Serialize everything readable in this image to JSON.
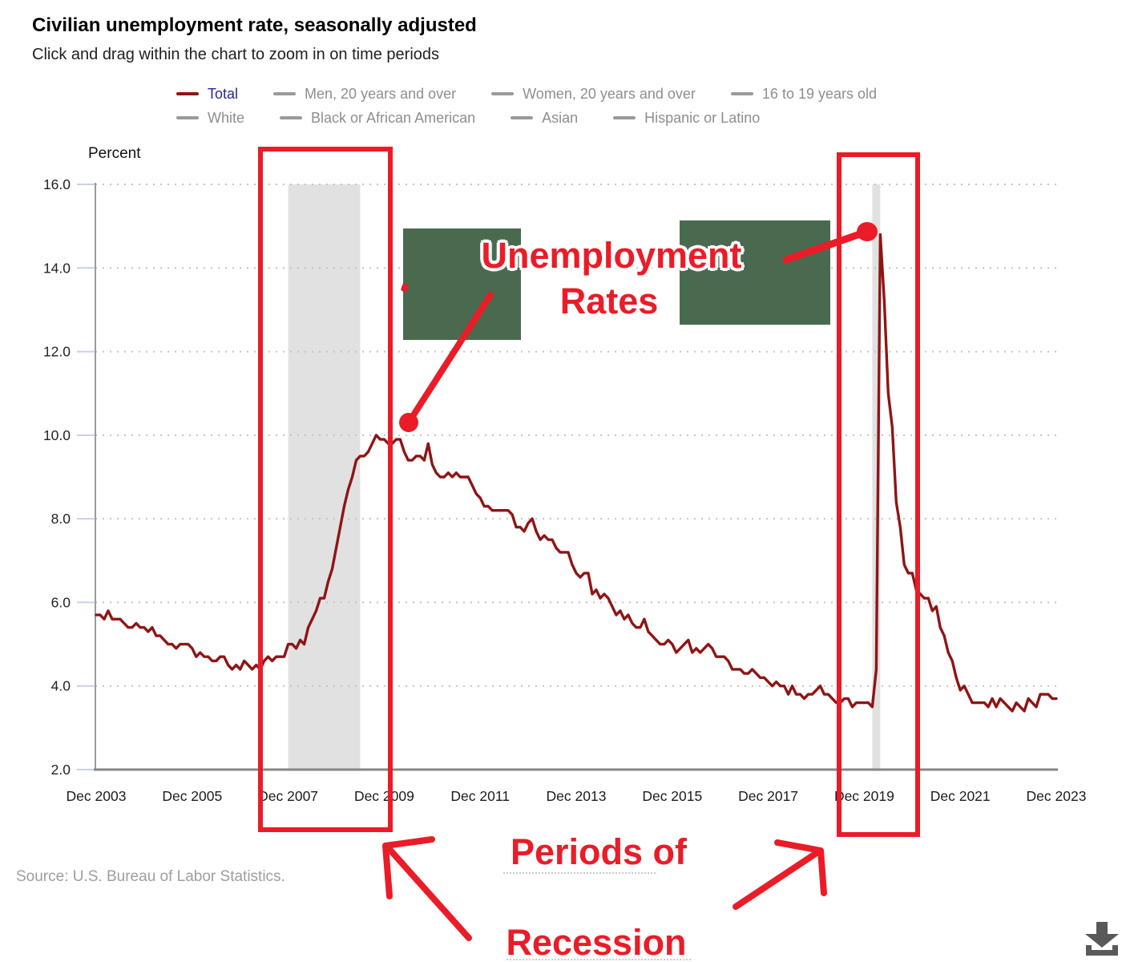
{
  "header": {
    "title": "Civilian unemployment rate, seasonally adjusted",
    "subtitle": "Click and drag within the chart to zoom in on time periods"
  },
  "legend": {
    "rows": [
      [
        {
          "label": "Total",
          "swatch": "#8e1515",
          "label_color": "#26269c",
          "active": true
        },
        {
          "label": "Men, 20 years and over"
        },
        {
          "label": "Women, 20 years and over"
        },
        {
          "label": "16 to 19 years old"
        }
      ],
      [
        {
          "label": "White"
        },
        {
          "label": "Black or African American"
        },
        {
          "label": "Asian"
        },
        {
          "label": "Hispanic or Latino"
        }
      ]
    ],
    "inactive_swatch": "#9a9a9a",
    "inactive_label_color": "#8e8e8e"
  },
  "chart_data": {
    "type": "line",
    "title": "Civilian unemployment rate, seasonally adjusted",
    "ylabel": "Percent",
    "ylim": [
      2,
      16
    ],
    "yticks": [
      2,
      4,
      6,
      8,
      10,
      12,
      14,
      16
    ],
    "ytick_labels": [
      "2.0",
      "4.0",
      "6.0",
      "8.0",
      "10.0",
      "12.0",
      "14.0",
      "16.0"
    ],
    "xtick_labels": [
      "Dec 2003",
      "Dec 2005",
      "Dec 2007",
      "Dec 2009",
      "Dec 2011",
      "Dec 2013",
      "Dec 2015",
      "Dec 2017",
      "Dec 2019",
      "Dec 2021",
      "Dec 2023"
    ],
    "xtick_every_months": 24,
    "grid": "dotted-horizontal",
    "legend_position": "top",
    "series": [
      {
        "name": "Total",
        "color": "#8e1515",
        "start": "2003-12",
        "frequency": "monthly",
        "values": [
          5.7,
          5.7,
          5.6,
          5.8,
          5.6,
          5.6,
          5.6,
          5.5,
          5.4,
          5.4,
          5.5,
          5.4,
          5.4,
          5.3,
          5.4,
          5.2,
          5.2,
          5.1,
          5.0,
          5.0,
          4.9,
          5.0,
          5.0,
          5.0,
          4.9,
          4.7,
          4.8,
          4.7,
          4.7,
          4.6,
          4.6,
          4.7,
          4.7,
          4.5,
          4.4,
          4.5,
          4.4,
          4.6,
          4.5,
          4.4,
          4.5,
          4.4,
          4.6,
          4.7,
          4.6,
          4.7,
          4.7,
          4.7,
          5.0,
          5.0,
          4.9,
          5.1,
          5.0,
          5.4,
          5.6,
          5.8,
          6.1,
          6.1,
          6.5,
          6.8,
          7.3,
          7.8,
          8.3,
          8.7,
          9.0,
          9.4,
          9.5,
          9.5,
          9.6,
          9.8,
          10.0,
          9.9,
          9.9,
          9.8,
          9.8,
          9.9,
          9.9,
          9.6,
          9.4,
          9.4,
          9.5,
          9.5,
          9.4,
          9.8,
          9.3,
          9.1,
          9.0,
          9.0,
          9.1,
          9.0,
          9.1,
          9.0,
          9.0,
          9.0,
          8.8,
          8.6,
          8.5,
          8.3,
          8.3,
          8.2,
          8.2,
          8.2,
          8.2,
          8.2,
          8.1,
          7.8,
          7.8,
          7.7,
          7.9,
          8.0,
          7.7,
          7.5,
          7.6,
          7.5,
          7.5,
          7.3,
          7.2,
          7.2,
          7.2,
          6.9,
          6.7,
          6.6,
          6.7,
          6.7,
          6.2,
          6.3,
          6.1,
          6.2,
          6.1,
          5.9,
          5.7,
          5.8,
          5.6,
          5.7,
          5.5,
          5.4,
          5.4,
          5.6,
          5.3,
          5.2,
          5.1,
          5.0,
          5.0,
          5.1,
          5.0,
          4.8,
          4.9,
          5.0,
          5.1,
          4.8,
          4.9,
          4.8,
          4.9,
          5.0,
          4.9,
          4.7,
          4.7,
          4.7,
          4.6,
          4.4,
          4.4,
          4.4,
          4.3,
          4.3,
          4.4,
          4.3,
          4.2,
          4.2,
          4.1,
          4.0,
          4.1,
          4.0,
          4.0,
          3.8,
          4.0,
          3.8,
          3.8,
          3.7,
          3.8,
          3.8,
          3.9,
          4.0,
          3.8,
          3.8,
          3.7,
          3.6,
          3.6,
          3.7,
          3.7,
          3.5,
          3.6,
          3.6,
          3.6,
          3.6,
          3.5,
          4.4,
          14.8,
          13.2,
          11.0,
          10.2,
          8.4,
          7.8,
          6.9,
          6.7,
          6.7,
          6.3,
          6.2,
          6.1,
          6.1,
          5.8,
          5.9,
          5.4,
          5.2,
          4.8,
          4.6,
          4.2,
          3.9,
          4.0,
          3.8,
          3.6,
          3.6,
          3.6,
          3.6,
          3.5,
          3.7,
          3.5,
          3.7,
          3.6,
          3.5,
          3.4,
          3.6,
          3.5,
          3.4,
          3.7,
          3.6,
          3.5,
          3.8,
          3.8,
          3.8,
          3.7,
          3.7
        ]
      }
    ],
    "recession_bands": [
      {
        "from": "2007-12",
        "to": "2009-06"
      },
      {
        "from": "2020-02",
        "to": "2020-04"
      }
    ],
    "recession_band_color": "#e1e1e1"
  },
  "annotations": {
    "color": "#ea1c28",
    "green_box_color": "#4a6a4f",
    "unemployment_line1": "Unemployment",
    "unemployment_line2": "Rates",
    "recession_line1": "Periods of",
    "recession_line2": "Recession"
  },
  "footer": {
    "source": "Source: U.S. Bureau of Labor Statistics."
  },
  "icons": {
    "download": "download-arrow-into-tray"
  }
}
